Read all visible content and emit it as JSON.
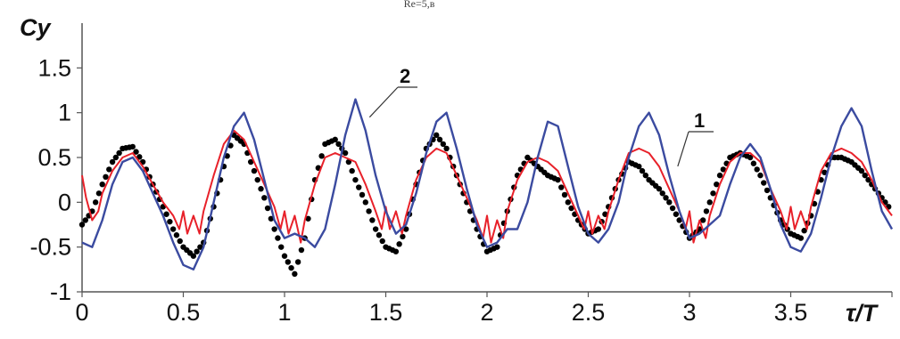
{
  "chart_data": {
    "type": "line",
    "title_fragment": "Re=5,в",
    "ylabel": "Cy",
    "xlabel": "τ/T",
    "xlim": [
      0,
      4
    ],
    "ylim": [
      -1,
      2
    ],
    "x_ticks": [
      "0",
      "0.5",
      "1",
      "1.5",
      "2",
      "2.5",
      "3",
      "3.5"
    ],
    "y_ticks": [
      "-1",
      "-0.5",
      "0",
      "0.5",
      "1",
      "1.5"
    ],
    "grid": false,
    "annotations": [
      {
        "text": "1",
        "points_to_series": "red",
        "x": 2.92,
        "y": 0.6
      },
      {
        "text": "2",
        "points_to_series": "blue",
        "x": 1.42,
        "y": 0.95
      }
    ],
    "series": [
      {
        "style": "dotted-markers",
        "color": "#000000",
        "x": [
          0.0,
          0.05,
          0.1,
          0.15,
          0.2,
          0.25,
          0.3,
          0.35,
          0.4,
          0.45,
          0.5,
          0.55,
          0.6,
          0.65,
          0.7,
          0.75,
          0.8,
          0.85,
          0.9,
          0.95,
          1.0,
          1.05,
          1.1,
          1.15,
          1.2,
          1.25,
          1.3,
          1.35,
          1.4,
          1.45,
          1.5,
          1.55,
          1.6,
          1.65,
          1.7,
          1.75,
          1.8,
          1.85,
          1.9,
          1.95,
          2.0,
          2.05,
          2.1,
          2.15,
          2.2,
          2.25,
          2.3,
          2.35,
          2.4,
          2.45,
          2.5,
          2.55,
          2.6,
          2.65,
          2.7,
          2.75,
          2.8,
          2.85,
          2.9,
          2.95,
          3.0,
          3.05,
          3.1,
          3.15,
          3.2,
          3.25,
          3.3,
          3.35,
          3.4,
          3.45,
          3.5,
          3.55,
          3.6,
          3.65,
          3.7,
          3.75,
          3.8,
          3.85,
          3.9,
          3.95,
          4.0
        ],
        "y": [
          -0.25,
          -0.1,
          0.2,
          0.45,
          0.6,
          0.62,
          0.45,
          0.2,
          -0.05,
          -0.3,
          -0.5,
          -0.6,
          -0.45,
          -0.05,
          0.4,
          0.75,
          0.65,
          0.35,
          0.05,
          -0.3,
          -0.6,
          -0.8,
          -0.4,
          0.25,
          0.65,
          0.7,
          0.55,
          0.25,
          0.0,
          -0.3,
          -0.5,
          -0.55,
          -0.3,
          0.2,
          0.6,
          0.75,
          0.6,
          0.3,
          0.0,
          -0.3,
          -0.55,
          -0.5,
          -0.1,
          0.3,
          0.5,
          0.4,
          0.3,
          0.25,
          0.0,
          -0.2,
          -0.35,
          -0.3,
          -0.05,
          0.25,
          0.45,
          0.4,
          0.25,
          0.15,
          0.0,
          -0.2,
          -0.4,
          -0.3,
          0.0,
          0.3,
          0.5,
          0.55,
          0.5,
          0.3,
          0.05,
          -0.2,
          -0.35,
          -0.4,
          -0.15,
          0.25,
          0.5,
          0.5,
          0.45,
          0.35,
          0.2,
          0.05,
          -0.1
        ]
      },
      {
        "name": "1",
        "style": "solid",
        "color": "#e8212a",
        "x": [
          0.0,
          0.02,
          0.05,
          0.08,
          0.1,
          0.15,
          0.2,
          0.25,
          0.3,
          0.35,
          0.4,
          0.45,
          0.48,
          0.5,
          0.52,
          0.55,
          0.58,
          0.6,
          0.65,
          0.7,
          0.75,
          0.8,
          0.85,
          0.9,
          0.95,
          0.98,
          1.0,
          1.02,
          1.05,
          1.08,
          1.1,
          1.15,
          1.2,
          1.25,
          1.3,
          1.35,
          1.4,
          1.45,
          1.48,
          1.5,
          1.52,
          1.55,
          1.58,
          1.6,
          1.65,
          1.7,
          1.75,
          1.8,
          1.85,
          1.9,
          1.95,
          1.98,
          2.0,
          2.02,
          2.05,
          2.08,
          2.1,
          2.15,
          2.2,
          2.25,
          2.3,
          2.35,
          2.4,
          2.45,
          2.48,
          2.5,
          2.52,
          2.55,
          2.58,
          2.6,
          2.65,
          2.7,
          2.75,
          2.8,
          2.85,
          2.9,
          2.95,
          2.98,
          3.0,
          3.02,
          3.05,
          3.08,
          3.1,
          3.15,
          3.2,
          3.25,
          3.3,
          3.35,
          3.4,
          3.45,
          3.48,
          3.5,
          3.52,
          3.55,
          3.58,
          3.6,
          3.65,
          3.7,
          3.75,
          3.8,
          3.85,
          3.9,
          3.95,
          4.0
        ],
        "y": [
          0.3,
          0.05,
          -0.2,
          -0.1,
          0.1,
          0.35,
          0.5,
          0.55,
          0.4,
          0.2,
          0.0,
          -0.15,
          -0.3,
          -0.1,
          -0.35,
          -0.15,
          -0.35,
          -0.1,
          0.3,
          0.65,
          0.8,
          0.7,
          0.45,
          0.2,
          -0.05,
          -0.3,
          -0.1,
          -0.35,
          -0.15,
          -0.45,
          -0.2,
          0.2,
          0.5,
          0.55,
          0.5,
          0.45,
          0.2,
          -0.1,
          -0.3,
          -0.05,
          -0.3,
          -0.1,
          -0.35,
          -0.15,
          0.25,
          0.5,
          0.6,
          0.55,
          0.3,
          0.05,
          -0.2,
          -0.4,
          -0.15,
          -0.45,
          -0.2,
          -0.4,
          -0.1,
          0.25,
          0.45,
          0.5,
          0.45,
          0.35,
          0.1,
          -0.15,
          -0.3,
          -0.1,
          -0.35,
          -0.15,
          -0.3,
          -0.1,
          0.25,
          0.55,
          0.6,
          0.55,
          0.4,
          0.15,
          -0.1,
          -0.3,
          -0.1,
          -0.45,
          -0.2,
          -0.4,
          -0.15,
          0.2,
          0.45,
          0.55,
          0.55,
          0.45,
          0.15,
          -0.1,
          -0.3,
          -0.05,
          -0.3,
          -0.1,
          -0.3,
          -0.05,
          0.35,
          0.55,
          0.6,
          0.55,
          0.45,
          0.25,
          0.0,
          -0.15
        ]
      },
      {
        "name": "2",
        "style": "solid",
        "color": "#3b4ba0",
        "x": [
          0.0,
          0.05,
          0.1,
          0.15,
          0.2,
          0.25,
          0.3,
          0.35,
          0.4,
          0.45,
          0.5,
          0.55,
          0.6,
          0.65,
          0.7,
          0.75,
          0.8,
          0.85,
          0.9,
          0.95,
          1.0,
          1.05,
          1.1,
          1.15,
          1.2,
          1.25,
          1.3,
          1.35,
          1.4,
          1.45,
          1.5,
          1.55,
          1.6,
          1.65,
          1.7,
          1.75,
          1.8,
          1.85,
          1.9,
          1.95,
          2.0,
          2.05,
          2.1,
          2.15,
          2.2,
          2.25,
          2.3,
          2.35,
          2.4,
          2.45,
          2.5,
          2.55,
          2.6,
          2.65,
          2.7,
          2.75,
          2.8,
          2.85,
          2.9,
          2.95,
          3.0,
          3.05,
          3.1,
          3.15,
          3.2,
          3.25,
          3.3,
          3.35,
          3.4,
          3.45,
          3.5,
          3.55,
          3.6,
          3.65,
          3.7,
          3.75,
          3.8,
          3.85,
          3.9,
          3.95,
          4.0
        ],
        "y": [
          -0.45,
          -0.5,
          -0.2,
          0.2,
          0.45,
          0.5,
          0.35,
          0.1,
          -0.15,
          -0.45,
          -0.7,
          -0.75,
          -0.5,
          0.0,
          0.5,
          0.85,
          1.0,
          0.7,
          0.25,
          -0.2,
          -0.4,
          -0.35,
          -0.4,
          -0.5,
          -0.3,
          0.2,
          0.75,
          1.15,
          0.8,
          0.3,
          -0.1,
          -0.35,
          -0.25,
          0.1,
          0.55,
          0.9,
          1.0,
          0.6,
          0.15,
          -0.25,
          -0.5,
          -0.45,
          -0.3,
          -0.3,
          0.0,
          0.5,
          0.9,
          0.85,
          0.4,
          -0.05,
          -0.35,
          -0.45,
          -0.3,
          0.0,
          0.5,
          0.85,
          1.0,
          0.75,
          0.3,
          -0.1,
          -0.4,
          -0.35,
          -0.25,
          -0.15,
          0.2,
          0.5,
          0.65,
          0.5,
          0.15,
          -0.25,
          -0.5,
          -0.55,
          -0.35,
          0.05,
          0.5,
          0.85,
          1.05,
          0.85,
          0.35,
          -0.1,
          -0.3
        ]
      }
    ]
  }
}
